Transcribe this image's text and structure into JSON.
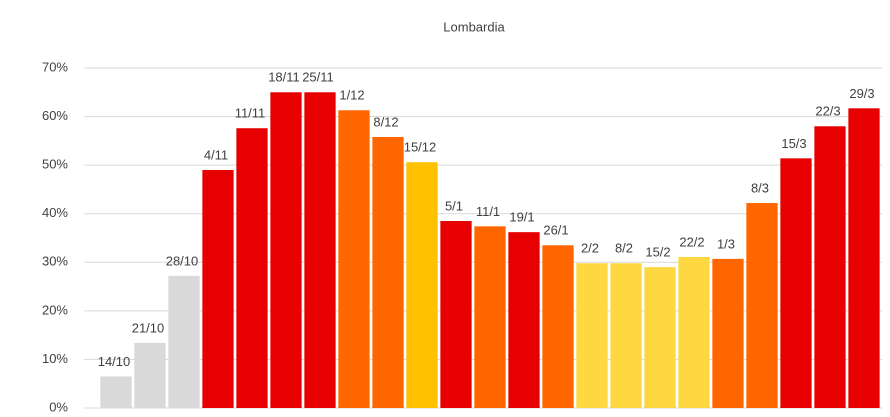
{
  "chart_data": {
    "type": "bar",
    "title": "Lombardia",
    "categories": [
      "14/10",
      "21/10",
      "28/10",
      "4/11",
      "11/11",
      "18/11",
      "25/11",
      "1/12",
      "8/12",
      "15/12",
      "5/1",
      "11/1",
      "19/1",
      "26/1",
      "2/2",
      "8/2",
      "15/2",
      "22/2",
      "1/3",
      "8/3",
      "15/3",
      "22/3",
      "29/3"
    ],
    "values": [
      6.5,
      13.4,
      27.2,
      49.0,
      57.6,
      65.0,
      65.0,
      61.3,
      55.8,
      50.6,
      38.5,
      37.4,
      36.2,
      33.5,
      29.8,
      29.8,
      29.0,
      31.1,
      30.7,
      42.2,
      51.4,
      58.0,
      61.7
    ],
    "colors": [
      "#d9d9d9",
      "#d9d9d9",
      "#d9d9d9",
      "#e60000",
      "#e60000",
      "#e60000",
      "#e60000",
      "#ff6600",
      "#ff6600",
      "#ffc000",
      "#e60000",
      "#ff6600",
      "#e60000",
      "#ff6600",
      "#ffd740",
      "#ffd740",
      "#ffd740",
      "#ffd740",
      "#ff6600",
      "#ff6600",
      "#e60000",
      "#e60000",
      "#e60000"
    ],
    "ylim": [
      0,
      70
    ],
    "yticks": [
      {
        "value": 0,
        "label": "0%"
      },
      {
        "value": 10,
        "label": "10%"
      },
      {
        "value": 20,
        "label": "20%"
      },
      {
        "value": 30,
        "label": "30%"
      },
      {
        "value": 40,
        "label": "40%"
      },
      {
        "value": 50,
        "label": "50%"
      },
      {
        "value": 60,
        "label": "60%"
      },
      {
        "value": 70,
        "label": "70%"
      }
    ],
    "grid": true
  }
}
